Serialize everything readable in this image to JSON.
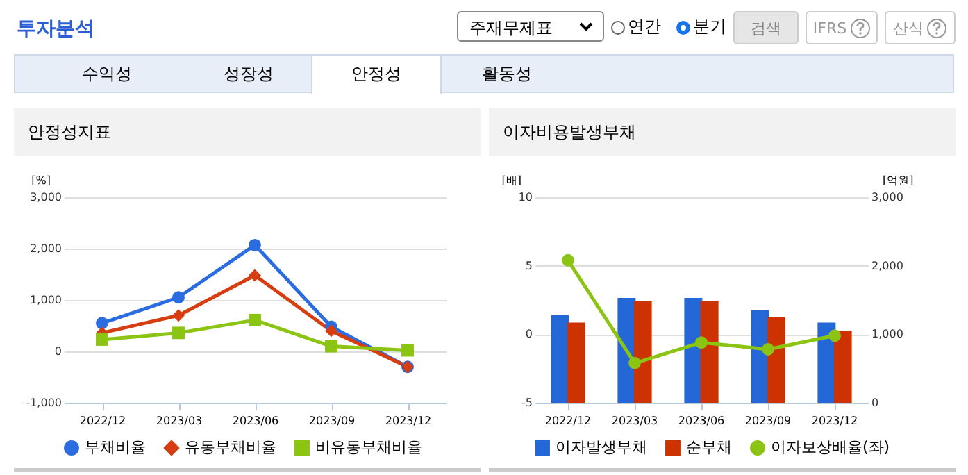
{
  "chart_data": [
    {
      "type": "other",
      "title": "투자분석",
      "annotations": [
        "주재무제표",
        "연간",
        "분기",
        "검색",
        "IFRS",
        "산식",
        "수익성",
        "성장성",
        "안정성",
        "활동성"
      ]
    },
    {
      "type": "line",
      "title": "안정성지표",
      "ylabel": "[%]",
      "categories": [
        "2022/12",
        "2023/03",
        "2023/06",
        "2023/09",
        "2023/12"
      ],
      "series": [
        {
          "name": "부채비율",
          "color": "#2b6de0",
          "marker": "circle",
          "values": [
            550,
            1050,
            2070,
            480,
            -300
          ]
        },
        {
          "name": "유동부채비율",
          "color": "#d63d10",
          "marker": "diamond",
          "values": [
            360,
            700,
            1480,
            400,
            -300
          ]
        },
        {
          "name": "비유동부채비율",
          "color": "#8cc414",
          "marker": "square",
          "values": [
            230,
            360,
            610,
            100,
            20
          ]
        }
      ],
      "ylim": [
        -1000,
        3000
      ],
      "yticks": [
        {
          "value": -1000,
          "label": "-1,000"
        },
        0,
        {
          "value": 1000,
          "label": "1,000"
        },
        {
          "value": 2000,
          "label": "2,000"
        },
        {
          "value": 3000,
          "label": "3,000"
        }
      ],
      "grid": "y",
      "legend": "bottom"
    },
    {
      "type": "bar",
      "title": "이자비용발생부채",
      "ylabel": "[배]",
      "y2label": "[억원]",
      "categories": [
        "2022/12",
        "2023/03",
        "2023/06",
        "2023/09",
        "2023/12"
      ],
      "series": [
        {
          "name": "이자발생부채",
          "color": "#2468d8",
          "axis": "y2",
          "values": [
            1280,
            1530,
            1530,
            1350,
            1170
          ]
        },
        {
          "name": "순부채",
          "color": "#cc3300",
          "axis": "y2",
          "values": [
            1170,
            1490,
            1490,
            1250,
            1050
          ]
        },
        {
          "name": "이자보상배율(좌)",
          "type": "line",
          "color": "#8cc414",
          "marker": "circle",
          "values": [
            5.4,
            -2.1,
            -0.6,
            -1.1,
            -0.1
          ]
        }
      ],
      "ylim": [
        -5,
        10
      ],
      "yticks": [
        -5,
        0,
        5,
        10
      ],
      "y2lim": [
        0,
        3000
      ],
      "y2ticks": [
        0,
        {
          "value": 1000,
          "label": "1,000"
        },
        {
          "value": 2000,
          "label": "2,000"
        },
        {
          "value": 3000,
          "label": "3,000"
        }
      ],
      "grid": "y",
      "legend": "bottom"
    }
  ]
}
